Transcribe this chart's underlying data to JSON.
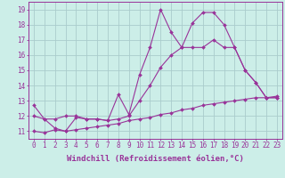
{
  "background_color": "#cceee8",
  "grid_color": "#aacccc",
  "line_color": "#993399",
  "xlabel": "Windchill (Refroidissement éolien,°C)",
  "xlabel_fontsize": 6.5,
  "tick_fontsize": 5.5,
  "xlim": [
    -0.5,
    23.5
  ],
  "ylim": [
    10.5,
    19.5
  ],
  "yticks": [
    11,
    12,
    13,
    14,
    15,
    16,
    17,
    18,
    19
  ],
  "xticks": [
    0,
    1,
    2,
    3,
    4,
    5,
    6,
    7,
    8,
    9,
    10,
    11,
    12,
    13,
    14,
    15,
    16,
    17,
    18,
    19,
    20,
    21,
    22,
    23
  ],
  "series1_x": [
    0,
    1,
    2,
    3,
    4,
    5,
    6,
    7,
    8,
    9,
    10,
    11,
    12,
    13,
    14,
    15,
    16,
    17,
    18,
    19,
    20,
    21,
    22,
    23
  ],
  "series1_y": [
    12.7,
    11.8,
    11.2,
    11.0,
    11.9,
    11.8,
    11.8,
    11.7,
    13.4,
    12.1,
    14.7,
    16.5,
    19.0,
    17.5,
    16.5,
    18.1,
    18.8,
    18.8,
    18.0,
    16.5,
    15.0,
    14.2,
    13.2,
    13.2
  ],
  "series2_x": [
    0,
    1,
    2,
    3,
    4,
    5,
    6,
    7,
    8,
    9,
    10,
    11,
    12,
    13,
    14,
    15,
    16,
    17,
    18,
    19,
    20,
    21,
    22,
    23
  ],
  "series2_y": [
    12.0,
    11.8,
    11.8,
    12.0,
    12.0,
    11.8,
    11.8,
    11.7,
    11.8,
    12.0,
    13.0,
    14.0,
    15.2,
    16.0,
    16.5,
    16.5,
    16.5,
    17.0,
    16.5,
    16.5,
    15.0,
    14.2,
    13.2,
    13.2
  ],
  "series3_x": [
    0,
    1,
    2,
    3,
    4,
    5,
    6,
    7,
    8,
    9,
    10,
    11,
    12,
    13,
    14,
    15,
    16,
    17,
    18,
    19,
    20,
    21,
    22,
    23
  ],
  "series3_y": [
    11.0,
    10.9,
    11.1,
    11.0,
    11.1,
    11.2,
    11.3,
    11.4,
    11.5,
    11.7,
    11.8,
    11.9,
    12.1,
    12.2,
    12.4,
    12.5,
    12.7,
    12.8,
    12.9,
    13.0,
    13.1,
    13.2,
    13.2,
    13.3
  ]
}
